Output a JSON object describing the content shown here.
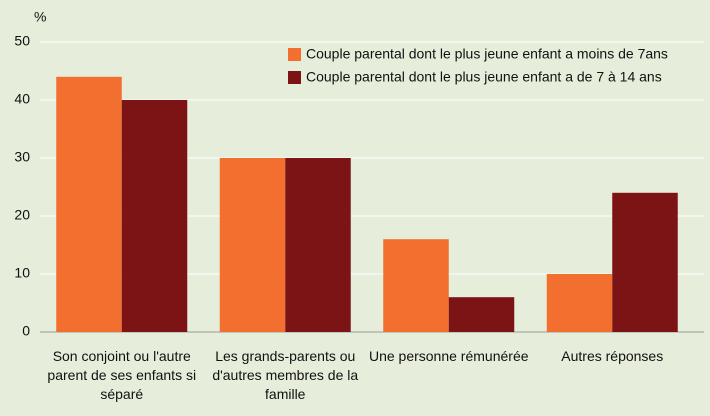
{
  "chart_data": {
    "type": "bar",
    "y_label": "%",
    "categories": [
      "Son conjoint ou l'autre parent de ses enfants si séparé",
      "Les grands-parents ou d'autres membres de la famille",
      "Une personne rémunérée",
      "Autres réponses"
    ],
    "series": [
      {
        "name": "Couple parental dont le plus jeune enfant a moins de 7ans",
        "color": "#f26f2f",
        "values": [
          44,
          30,
          16,
          10
        ]
      },
      {
        "name": "Couple parental dont le plus jeune enfant a de 7 à 14 ans",
        "color": "#7c1315",
        "values": [
          40,
          30,
          6,
          24
        ]
      }
    ],
    "ylim": [
      0,
      50
    ],
    "yticks": [
      0,
      10,
      20,
      30,
      40,
      50
    ],
    "grid": true,
    "legend": "upper right"
  }
}
